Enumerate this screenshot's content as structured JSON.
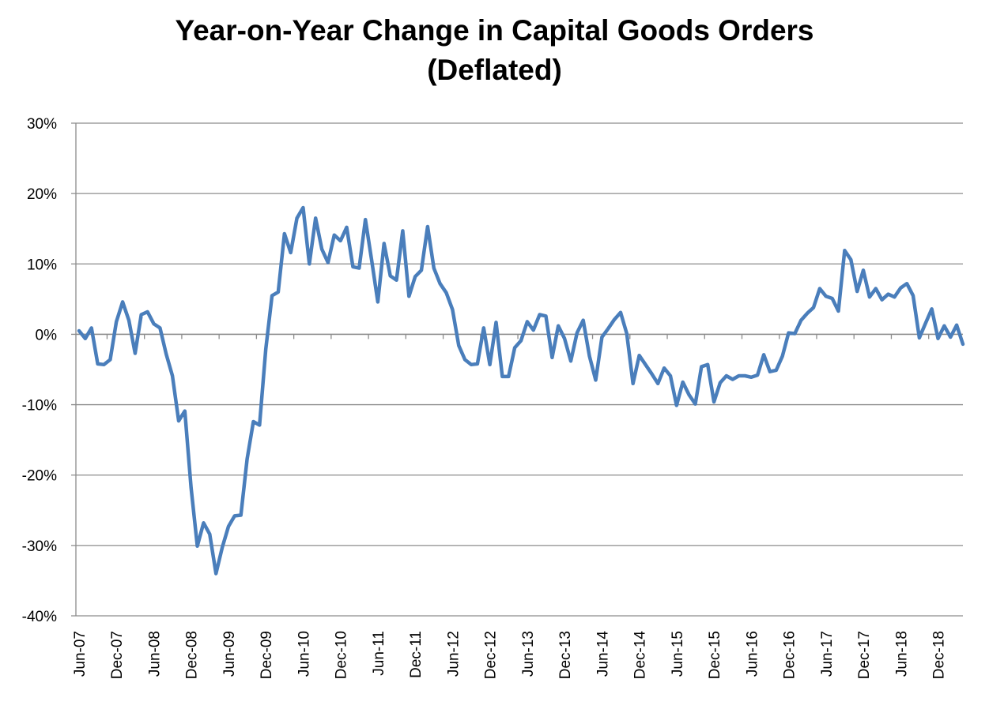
{
  "chart_data": {
    "type": "line",
    "title_line1": "Year-on-Year Change in Capital Goods Orders",
    "title_line2": "(Deflated)",
    "xlabel": "",
    "ylabel": "",
    "ylim": [
      -40,
      30
    ],
    "y_ticks": [
      30,
      20,
      10,
      0,
      -10,
      -20,
      -30,
      -40
    ],
    "y_tick_labels": [
      "30%",
      "20%",
      "10%",
      "0%",
      "-10%",
      "-20%",
      "-30%",
      "-40%"
    ],
    "x_tick_labels": [
      "Jun-07",
      "Dec-07",
      "Jun-08",
      "Dec-08",
      "Jun-09",
      "Dec-09",
      "Jun-10",
      "Dec-10",
      "Jun-11",
      "Dec-11",
      "Jun-12",
      "Dec-12",
      "Jun-13",
      "Dec-13",
      "Jun-14",
      "Dec-14",
      "Jun-15",
      "Dec-15",
      "Jun-16",
      "Dec-16",
      "Jun-17",
      "Dec-17",
      "Jun-18",
      "Dec-18"
    ],
    "x_start": "Jun-07",
    "x_end": "Apr-19",
    "grid": true,
    "legend": "none",
    "line_color": "#4a7ebb",
    "grid_color": "#8c8c8c",
    "series": [
      {
        "values": [
          0.5,
          -0.6,
          0.9,
          -4.2,
          -4.3,
          -3.6,
          1.8,
          4.6,
          2.0,
          -2.7,
          2.8,
          3.2,
          1.5,
          0.9,
          -2.8,
          -5.9,
          -12.3,
          -10.9,
          -21.8,
          -30.1,
          -26.8,
          -28.4,
          -34.0,
          -30.3,
          -27.3,
          -25.8,
          -25.7,
          -17.7,
          -12.4,
          -12.9,
          -2.1,
          5.5,
          6.0,
          14.3,
          11.6,
          16.5,
          18.0,
          10.0,
          16.5,
          12.1,
          10.2,
          14.1,
          13.3,
          15.2,
          9.6,
          9.4,
          16.3,
          10.6,
          4.6,
          12.9,
          8.3,
          7.7,
          14.7,
          5.4,
          8.2,
          9.1,
          15.3,
          9.4,
          7.2,
          5.9,
          3.5,
          -1.6,
          -3.6,
          -4.3,
          -4.2,
          0.9,
          -4.3,
          1.7,
          -6.0,
          -6.0,
          -1.9,
          -0.9,
          1.8,
          0.6,
          2.8,
          2.6,
          -3.3,
          1.2,
          -0.6,
          -3.8,
          0.2,
          2.0,
          -3.1,
          -6.5,
          -0.4,
          0.8,
          2.1,
          3.1,
          0.1,
          -7.0,
          -3.0,
          -4.3,
          -5.6,
          -7.0,
          -4.8,
          -5.9,
          -10.1,
          -6.8,
          -8.6,
          -9.9,
          -4.6,
          -4.3,
          -9.6,
          -6.9,
          -5.9,
          -6.4,
          -5.9,
          -5.9,
          -6.1,
          -5.8,
          -2.9,
          -5.3,
          -5.1,
          -3.1,
          0.2,
          0.1,
          2.0,
          3.0,
          3.8,
          6.5,
          5.4,
          5.1,
          3.3,
          11.9,
          10.6,
          6.1,
          9.1,
          5.3,
          6.5,
          4.9,
          5.7,
          5.3,
          6.6,
          7.2,
          5.5,
          -0.5,
          1.6,
          3.6,
          -0.6,
          1.2,
          -0.4,
          1.3,
          -1.4
        ]
      }
    ]
  }
}
